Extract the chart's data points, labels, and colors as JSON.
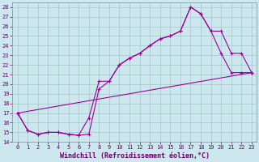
{
  "xlabel": "Windchill (Refroidissement éolien,°C)",
  "bg_color": "#cce8ee",
  "grid_color": "#aacccc",
  "line_color": "#990099",
  "spine_color": "#888888",
  "xlim": [
    -0.5,
    23.5
  ],
  "ylim": [
    14,
    28.5
  ],
  "xticks": [
    0,
    1,
    2,
    3,
    4,
    5,
    6,
    7,
    8,
    9,
    10,
    11,
    12,
    13,
    14,
    15,
    16,
    17,
    18,
    19,
    20,
    21,
    22,
    23
  ],
  "yticks": [
    14,
    15,
    16,
    17,
    18,
    19,
    20,
    21,
    22,
    23,
    24,
    25,
    26,
    27,
    28
  ],
  "line1_x": [
    0,
    1,
    2,
    3,
    4,
    5,
    6,
    7,
    8,
    9,
    10,
    11,
    12,
    13,
    14,
    15,
    16,
    17,
    18,
    19,
    20,
    21,
    22,
    23
  ],
  "line1_y": [
    17.0,
    15.2,
    14.8,
    15.0,
    15.0,
    14.8,
    14.7,
    14.8,
    19.5,
    20.3,
    22.0,
    22.7,
    23.2,
    24.0,
    24.7,
    25.0,
    25.5,
    28.0,
    27.3,
    25.5,
    25.5,
    23.2,
    23.2,
    21.2
  ],
  "line2_x": [
    0,
    1,
    2,
    3,
    4,
    5,
    6,
    7,
    8,
    9,
    10,
    11,
    12,
    13,
    14,
    15,
    16,
    17,
    18,
    19,
    20,
    21,
    22,
    23
  ],
  "line2_y": [
    17.0,
    15.2,
    14.8,
    15.0,
    15.0,
    14.8,
    14.7,
    16.5,
    20.3,
    20.3,
    22.0,
    22.7,
    23.2,
    24.0,
    24.7,
    25.0,
    25.5,
    28.0,
    27.3,
    25.5,
    23.2,
    21.2,
    21.2,
    21.2
  ],
  "line3_x": [
    0,
    23
  ],
  "line3_y": [
    17.0,
    21.2
  ],
  "tick_color": "#660066",
  "xlabel_color": "#660066",
  "tick_fontsize": 5,
  "xlabel_fontsize": 6
}
